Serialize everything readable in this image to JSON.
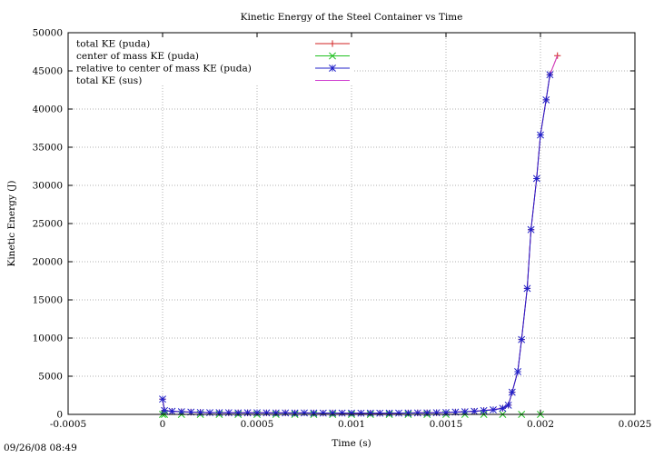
{
  "chart_data": {
    "type": "line",
    "title": "Kinetic Energy of the Steel Container vs Time",
    "xlabel": "Time (s)",
    "ylabel": "Kinetic Energy (J)",
    "xlim": [
      -0.0005,
      0.0025
    ],
    "ylim": [
      0,
      50000
    ],
    "x_ticks": [
      -0.0005,
      0,
      0.0005,
      0.001,
      0.0015,
      0.002,
      0.0025
    ],
    "x_tick_labels": [
      "-0.0005",
      "0",
      "0.0005",
      "0.001",
      "0.0015",
      "0.002",
      "0.0025"
    ],
    "y_ticks": [
      0,
      5000,
      10000,
      15000,
      20000,
      25000,
      30000,
      35000,
      40000,
      45000,
      50000
    ],
    "y_tick_labels": [
      "0",
      "5000",
      "10000",
      "15000",
      "20000",
      "25000",
      "30000",
      "35000",
      "40000",
      "45000",
      "50000"
    ],
    "grid": true,
    "legend_position": "top-left",
    "series": [
      {
        "name": "total KE (puda)",
        "color": "#d02020",
        "marker": "plus",
        "x": [
          0,
          1e-05,
          5e-05,
          0.0001,
          0.00015,
          0.0002,
          0.00025,
          0.0003,
          0.00035,
          0.0004,
          0.00045,
          0.0005,
          0.00055,
          0.0006,
          0.00065,
          0.0007,
          0.00075,
          0.0008,
          0.00085,
          0.0009,
          0.00095,
          0.001,
          0.00105,
          0.0011,
          0.00115,
          0.0012,
          0.00125,
          0.0013,
          0.00135,
          0.0014,
          0.00145,
          0.0015,
          0.00155,
          0.0016,
          0.00165,
          0.0017,
          0.00175,
          0.0018,
          0.00183,
          0.00185,
          0.00188,
          0.0019,
          0.00193,
          0.00195,
          0.00198,
          0.002,
          0.00203,
          0.00205,
          0.00209
        ],
        "values": [
          2000,
          500,
          400,
          350,
          300,
          250,
          230,
          230,
          220,
          200,
          210,
          220,
          200,
          190,
          190,
          180,
          190,
          180,
          170,
          180,
          170,
          170,
          160,
          170,
          160,
          170,
          170,
          180,
          190,
          200,
          220,
          250,
          300,
          350,
          400,
          500,
          600,
          800,
          1200,
          2900,
          5600,
          9800,
          16500,
          24200,
          30900,
          36600,
          41200,
          44500,
          47000
        ]
      },
      {
        "name": "center of mass KE (puda)",
        "color": "#20c020",
        "marker": "cross",
        "x": [
          0,
          1e-05,
          0.0001,
          0.0002,
          0.0003,
          0.0004,
          0.0005,
          0.0006,
          0.0007,
          0.0008,
          0.0009,
          0.001,
          0.0011,
          0.0012,
          0.0013,
          0.0014,
          0.0015,
          0.0016,
          0.0017,
          0.0018,
          0.0019,
          0.002
        ],
        "values": [
          0,
          0,
          0,
          0,
          0,
          0,
          0,
          0,
          0,
          0,
          0,
          0,
          0,
          0,
          0,
          0,
          0,
          0,
          0,
          0,
          0,
          0
        ]
      },
      {
        "name": "relative to center of mass KE (puda)",
        "color": "#2020c8",
        "marker": "star",
        "x": [
          0,
          1e-05,
          5e-05,
          0.0001,
          0.00015,
          0.0002,
          0.00025,
          0.0003,
          0.00035,
          0.0004,
          0.00045,
          0.0005,
          0.00055,
          0.0006,
          0.00065,
          0.0007,
          0.00075,
          0.0008,
          0.00085,
          0.0009,
          0.00095,
          0.001,
          0.00105,
          0.0011,
          0.00115,
          0.0012,
          0.00125,
          0.0013,
          0.00135,
          0.0014,
          0.00145,
          0.0015,
          0.00155,
          0.0016,
          0.00165,
          0.0017,
          0.00175,
          0.0018,
          0.00183,
          0.00185,
          0.00188,
          0.0019,
          0.00193,
          0.00195,
          0.00198,
          0.002,
          0.00203,
          0.00205
        ],
        "values": [
          2000,
          500,
          400,
          350,
          300,
          250,
          230,
          230,
          220,
          200,
          210,
          220,
          200,
          190,
          190,
          180,
          190,
          180,
          170,
          180,
          170,
          170,
          160,
          170,
          160,
          170,
          170,
          180,
          190,
          200,
          220,
          250,
          300,
          350,
          400,
          500,
          600,
          800,
          1200,
          2900,
          5600,
          9800,
          16500,
          24200,
          30900,
          36600,
          41200,
          44500
        ]
      },
      {
        "name": "total KE (sus)",
        "color": "#d040d0",
        "marker": "none",
        "x": [
          0,
          1e-05,
          0.0001,
          0.0003,
          0.0005,
          0.0008,
          0.001,
          0.0012,
          0.0014,
          0.0016,
          0.0017,
          0.0018,
          0.00183,
          0.00185,
          0.00188,
          0.0019,
          0.00193,
          0.00195,
          0.00198,
          0.002,
          0.00203,
          0.00205,
          0.00209
        ],
        "values": [
          2000,
          500,
          350,
          230,
          220,
          180,
          170,
          170,
          200,
          350,
          500,
          800,
          1200,
          2900,
          5600,
          9800,
          16500,
          24200,
          30900,
          36600,
          41200,
          44500,
          47000
        ]
      }
    ]
  },
  "footer": {
    "timestamp": "09/26/08 08:49"
  }
}
